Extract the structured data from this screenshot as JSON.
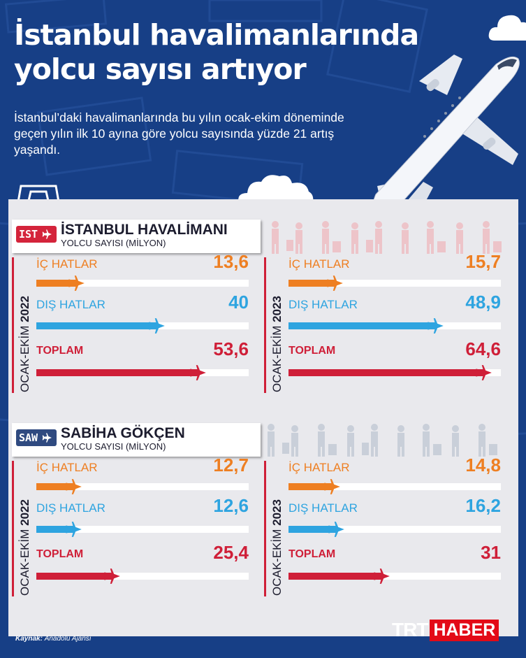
{
  "header": {
    "title": "İstanbul havalimanlarında yolcu sayısı artıyor",
    "subtitle": "İstanbul’daki havalimanlarında bu yılın ocak-ekim döneminde geçen yılın ilk 10 ayına göre yolcu sayısında yüzde 21 artış yaşandı."
  },
  "colors": {
    "background": "#173f86",
    "ic_hatlar": "#ee7f22",
    "dis_hatlar": "#2ea4e0",
    "toplam": "#cf1f38",
    "ist_code_bg": "#d4243b",
    "saw_code_bg": "#2f4a80"
  },
  "icons": [
    "airplane-icon",
    "paper-clip-icon",
    "cloud-icon",
    "passengers-silhouette-icon"
  ],
  "airports": [
    {
      "code": "IST",
      "name": "İSTANBUL HAVALİMANI",
      "unit": "YOLCU SAYISI (MİLYON)",
      "periods": [
        {
          "label_prefix": "OCAK-EKİM ",
          "year": "2022",
          "rows": [
            {
              "label": "İÇ HATLAR",
              "display": "13,6",
              "value": 13.6
            },
            {
              "label": "DIŞ HATLAR",
              "display": "40",
              "value": 40
            },
            {
              "label": "TOPLAM",
              "display": "53,6",
              "value": 53.6
            }
          ]
        },
        {
          "label_prefix": "OCAK-EKİM ",
          "year": "2023",
          "rows": [
            {
              "label": "İÇ HATLAR",
              "display": "15,7",
              "value": 15.7
            },
            {
              "label": "DIŞ HATLAR",
              "display": "48,9",
              "value": 48.9
            },
            {
              "label": "TOPLAM",
              "display": "64,6",
              "value": 64.6
            }
          ]
        }
      ]
    },
    {
      "code": "SAW",
      "name": "SABİHA GÖKÇEN",
      "unit": "YOLCU SAYISI (MİLYON)",
      "periods": [
        {
          "label_prefix": "OCAK-EKİM ",
          "year": "2022",
          "rows": [
            {
              "label": "İÇ HATLAR",
              "display": "12,7",
              "value": 12.7
            },
            {
              "label": "DIŞ HATLAR",
              "display": "12,6",
              "value": 12.6
            },
            {
              "label": "TOPLAM",
              "display": "25,4",
              "value": 25.4
            }
          ]
        },
        {
          "label_prefix": "OCAK-EKİM ",
          "year": "2023",
          "rows": [
            {
              "label": "İÇ HATLAR",
              "display": "14,8",
              "value": 14.8
            },
            {
              "label": "DIŞ HATLAR",
              "display": "16,2",
              "value": 16.2
            },
            {
              "label": "TOPLAM",
              "display": "31",
              "value": 31
            }
          ]
        }
      ]
    }
  ],
  "footer": {
    "source_label": "Kaynak:",
    "source_value": "Anadolu Ajansı",
    "logo_trt": "TRT",
    "logo_haber": "HABER"
  },
  "chart_data": [
    {
      "type": "bar",
      "title": "İSTANBUL HAVALİMANI",
      "ylabel": "YOLCU SAYISI (MİLYON)",
      "categories": [
        "İÇ HATLAR",
        "DIŞ HATLAR",
        "TOPLAM"
      ],
      "series": [
        {
          "name": "OCAK-EKİM 2022",
          "values": [
            13.6,
            40,
            53.6
          ]
        },
        {
          "name": "OCAK-EKİM 2023",
          "values": [
            15.7,
            48.9,
            64.6
          ]
        }
      ]
    },
    {
      "type": "bar",
      "title": "SABİHA GÖKÇEN",
      "ylabel": "YOLCU SAYISI (MİLYON)",
      "categories": [
        "İÇ HATLAR",
        "DIŞ HATLAR",
        "TOPLAM"
      ],
      "series": [
        {
          "name": "OCAK-EKİM 2022",
          "values": [
            12.7,
            12.6,
            25.4
          ]
        },
        {
          "name": "OCAK-EKİM 2023",
          "values": [
            14.8,
            16.2,
            31
          ]
        }
      ]
    }
  ]
}
